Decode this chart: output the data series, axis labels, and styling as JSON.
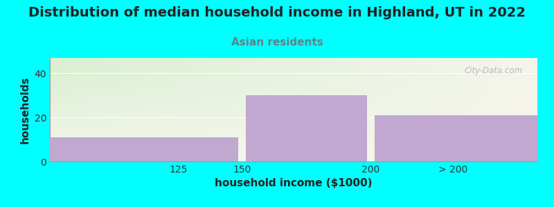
{
  "title": "Distribution of median household income in Highland, UT in 2022",
  "subtitle": "Asian residents",
  "xlabel": "household income ($1000)",
  "ylabel": "households",
  "background_color": "#00ffff",
  "bar_color": "#c0a8d0",
  "values": [
    11,
    30,
    21
  ],
  "bar_edges": [
    75,
    150,
    200,
    265
  ],
  "xtick_positions": [
    125,
    150,
    200,
    232
  ],
  "xtick_labels": [
    "125",
    "150",
    "200",
    "> 200"
  ],
  "ylim": [
    0,
    47
  ],
  "yticks": [
    0,
    20,
    40
  ],
  "title_fontsize": 14,
  "title_color": "#222222",
  "subtitle_color": "#558888",
  "subtitle_fontsize": 11,
  "axis_label_fontsize": 11,
  "tick_fontsize": 10,
  "watermark": "City-Data.com",
  "gradient_left_color": "#d8f0d0",
  "gradient_right_color": "#f5f5ec"
}
